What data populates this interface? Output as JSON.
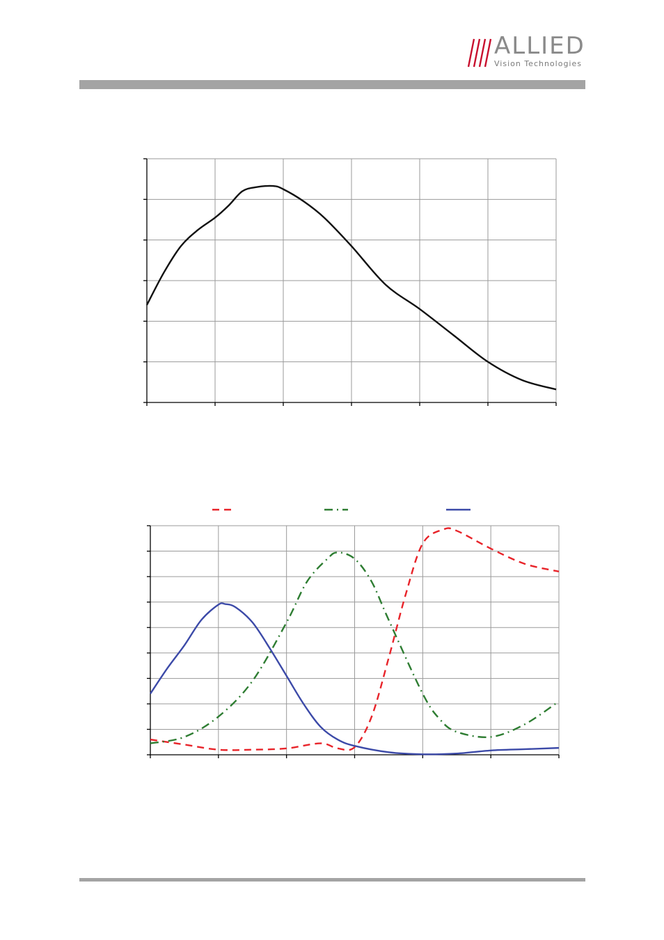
{
  "logo": {
    "word": "ALLIED",
    "sub": "Vision Technologies",
    "colors": {
      "slashes": "#c8102e",
      "text": "#8a8a8a"
    }
  },
  "colors": {
    "rule": "#a4a4a4",
    "grid": "#9a9a9a",
    "axis": "#000000",
    "mono_line": "#111111",
    "red": "#e8242a",
    "green": "#2e7d32",
    "blue": "#3c4aa8"
  },
  "chart_data": [
    {
      "type": "line",
      "title": "",
      "xlabel": "",
      "ylabel": "",
      "xlim": [
        0,
        6
      ],
      "ylim": [
        0,
        6
      ],
      "grid": true,
      "legend": "none",
      "series": [
        {
          "style": "solid",
          "color": "#111111",
          "x": [
            0,
            0.25,
            0.5,
            0.75,
            1.0,
            1.2,
            1.4,
            1.6,
            1.85,
            2.0,
            2.3,
            2.6,
            3.0,
            3.5,
            4.0,
            4.5,
            5.0,
            5.5,
            6.0
          ],
          "y": [
            2.4,
            3.2,
            3.85,
            4.25,
            4.55,
            4.85,
            5.2,
            5.3,
            5.33,
            5.25,
            4.95,
            4.55,
            3.85,
            2.9,
            2.3,
            1.65,
            1.0,
            0.55,
            0.32
          ]
        }
      ]
    },
    {
      "type": "line",
      "title": "",
      "xlabel": "",
      "ylabel": "",
      "xlim": [
        0,
        6
      ],
      "ylim": [
        0,
        9
      ],
      "grid": true,
      "legend": "top",
      "series": [
        {
          "style": "dashed",
          "color": "#e8242a",
          "x": [
            0,
            0.5,
            1.0,
            1.5,
            2.0,
            2.5,
            2.75,
            3.0,
            3.25,
            3.5,
            3.75,
            4.0,
            4.3,
            4.5,
            5.0,
            5.5,
            6.0
          ],
          "y": [
            0.6,
            0.4,
            0.2,
            0.2,
            0.25,
            0.45,
            0.25,
            0.3,
            1.5,
            3.8,
            6.3,
            8.3,
            8.85,
            8.8,
            8.1,
            7.5,
            7.2
          ]
        },
        {
          "style": "dash-dot",
          "color": "#2e7d32",
          "x": [
            0,
            0.5,
            1.0,
            1.5,
            2.0,
            2.3,
            2.6,
            2.75,
            3.0,
            3.25,
            3.5,
            4.0,
            4.25,
            4.5,
            5.0,
            5.5,
            6.0
          ],
          "y": [
            0.45,
            0.7,
            1.5,
            2.9,
            5.2,
            6.8,
            7.7,
            7.95,
            7.7,
            6.8,
            5.3,
            2.4,
            1.4,
            0.9,
            0.7,
            1.2,
            2.1
          ]
        },
        {
          "style": "solid",
          "color": "#3c4aa8",
          "x": [
            0,
            0.25,
            0.5,
            0.75,
            1.0,
            1.1,
            1.25,
            1.5,
            1.75,
            2.0,
            2.25,
            2.5,
            2.75,
            3.0,
            3.5,
            4.0,
            4.5,
            5.0,
            5.5,
            6.0
          ],
          "y": [
            2.4,
            3.4,
            4.3,
            5.3,
            5.9,
            5.92,
            5.8,
            5.2,
            4.2,
            3.1,
            2.0,
            1.1,
            0.6,
            0.35,
            0.1,
            0.02,
            0.05,
            0.17,
            0.22,
            0.27
          ]
        }
      ]
    }
  ]
}
